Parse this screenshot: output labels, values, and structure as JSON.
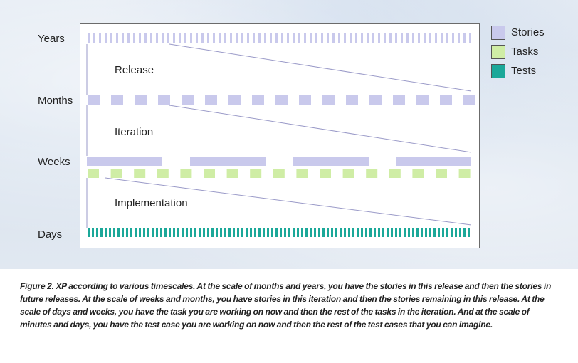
{
  "rows": {
    "years": "Years",
    "months": "Months",
    "weeks": "Weeks",
    "days": "Days"
  },
  "phases": {
    "release": "Release",
    "iteration": "Iteration",
    "implementation": "Implementation"
  },
  "legend": [
    {
      "label": "Stories",
      "color": "#c9c9ec"
    },
    {
      "label": "Tasks",
      "color": "#cfeda5"
    },
    {
      "label": "Tests",
      "color": "#1ba899"
    }
  ],
  "colors": {
    "stories": "#c9c9ec",
    "tasks": "#cfeda5",
    "tests": "#1ba899",
    "connector": "#9a9ac8"
  },
  "caption": "Figure 2. XP according to various timescales. At the scale of months and years, you have the stories in this release and then the stories in future releases. At the scale of weeks and months, you have stories in this iteration and then the stories remaining in this release. At the scale of days and weeks, you have the task you are working on now and then the rest of the tasks in the iteration. And at the scale of minutes and days, you have the test case you are working on now and then the rest of the test cases that you can imagine."
}
